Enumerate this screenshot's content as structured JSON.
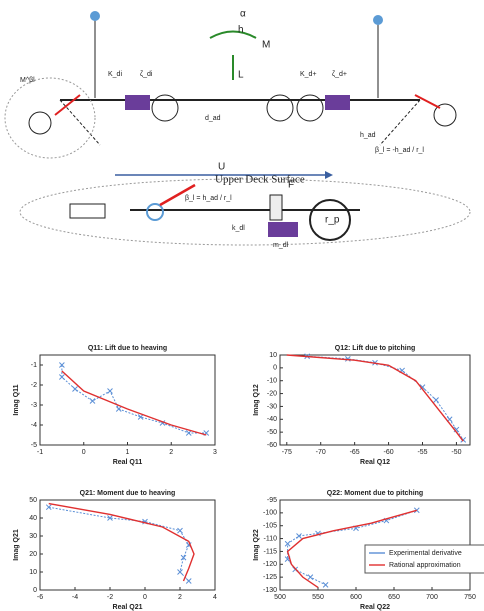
{
  "diagram": {
    "labels": [
      "α",
      "h",
      "M",
      "L",
      "U",
      "K_di",
      "ζ_di",
      "K_d+",
      "ζ_d+",
      "d_ad",
      "h_ad",
      "β_l = -h_ad / r_l",
      "M^βl",
      "Upper Deck Surface",
      "F",
      "β_l = h_ad / r_l",
      "r_p",
      "m_dl",
      "k_dl"
    ]
  },
  "chart_data": [
    {
      "type": "line",
      "title": "Q11: Lift due to heaving",
      "xlabel": "Real Q11",
      "ylabel": "Imag Q11",
      "xlim": [
        -1,
        3
      ],
      "xticks": [
        -1,
        0,
        1,
        2,
        3
      ],
      "ylim": [
        -5,
        -0.5
      ],
      "yticks": [
        -5,
        -4,
        -3,
        -2,
        -1
      ],
      "series": [
        {
          "color": "#5b8fd6",
          "markers": true,
          "x": [
            -0.5,
            -0.5,
            -0.2,
            0.2,
            0.6,
            0.8,
            1.3,
            1.8,
            2.4,
            2.8
          ],
          "values": [
            -1,
            -1.6,
            -2.2,
            -2.8,
            -2.3,
            -3.2,
            -3.6,
            -3.9,
            -4.4,
            -4.4
          ]
        },
        {
          "color": "#e03030",
          "markers": false,
          "x": [
            -0.5,
            0,
            1,
            2,
            2.8
          ],
          "values": [
            -1.3,
            -2.3,
            -3.2,
            -4,
            -4.5
          ]
        }
      ]
    },
    {
      "type": "line",
      "title": "Q12: Lift due to pitching",
      "xlabel": "Real Q12",
      "ylabel": "Imag Q12",
      "xlim": [
        -76,
        -48
      ],
      "xticks": [
        -75,
        -70,
        -65,
        -60,
        -55,
        -50
      ],
      "ylim": [
        -60,
        10
      ],
      "yticks": [
        -60,
        -50,
        -40,
        -30,
        -20,
        -10,
        0,
        10
      ],
      "series": [
        {
          "color": "#5b8fd6",
          "markers": true,
          "x": [
            -72,
            -66,
            -62,
            -58,
            -55,
            -53,
            -51,
            -50,
            -49
          ],
          "values": [
            9,
            7,
            4,
            -2,
            -15,
            -25,
            -40,
            -48,
            -56
          ]
        },
        {
          "color": "#e03030",
          "markers": false,
          "x": [
            -75,
            -65,
            -60,
            -56,
            -53,
            -50,
            -49
          ],
          "values": [
            10,
            6,
            2,
            -10,
            -30,
            -50,
            -57
          ]
        }
      ]
    },
    {
      "type": "line",
      "title": "Q21: Moment due to heaving",
      "xlabel": "Real Q21",
      "ylabel": "Imag Q21",
      "xlim": [
        -6,
        4
      ],
      "xticks": [
        -6,
        -4,
        -2,
        0,
        2,
        4
      ],
      "ylim": [
        0,
        50
      ],
      "yticks": [
        0,
        10,
        20,
        30,
        40,
        50
      ],
      "series": [
        {
          "color": "#5b8fd6",
          "markers": true,
          "x": [
            -5.5,
            -2,
            0,
            2,
            2.5,
            2.2,
            2,
            2.5
          ],
          "values": [
            46,
            40,
            38,
            33,
            25,
            18,
            10,
            5
          ]
        },
        {
          "color": "#e03030",
          "markers": false,
          "x": [
            -5.5,
            -2,
            1,
            2.5,
            2.8,
            2.5,
            2.2
          ],
          "values": [
            48,
            42,
            35,
            27,
            20,
            12,
            5
          ]
        }
      ]
    },
    {
      "type": "line",
      "title": "Q22: Moment due to pitching",
      "xlabel": "Real Q22",
      "ylabel": "Imag Q22",
      "xlim": [
        500,
        750
      ],
      "xticks": [
        500,
        550,
        600,
        650,
        700,
        750
      ],
      "ylim": [
        -130,
        -95
      ],
      "yticks": [
        -130,
        -125,
        -120,
        -115,
        -110,
        -105,
        -100,
        -95
      ],
      "series": [
        {
          "name": "Experimental derivative",
          "color": "#5b8fd6",
          "markers": true,
          "x": [
            680,
            640,
            600,
            550,
            525,
            510,
            510,
            520,
            540,
            560
          ],
          "values": [
            -99,
            -103,
            -106,
            -108,
            -109,
            -112,
            -118,
            -122,
            -125,
            -128
          ]
        },
        {
          "name": "Rational approximation",
          "color": "#e03030",
          "markers": false,
          "x": [
            680,
            620,
            570,
            530,
            510,
            515,
            530,
            550
          ],
          "values": [
            -99,
            -104,
            -107,
            -110,
            -115,
            -120,
            -125,
            -129
          ]
        }
      ]
    }
  ]
}
